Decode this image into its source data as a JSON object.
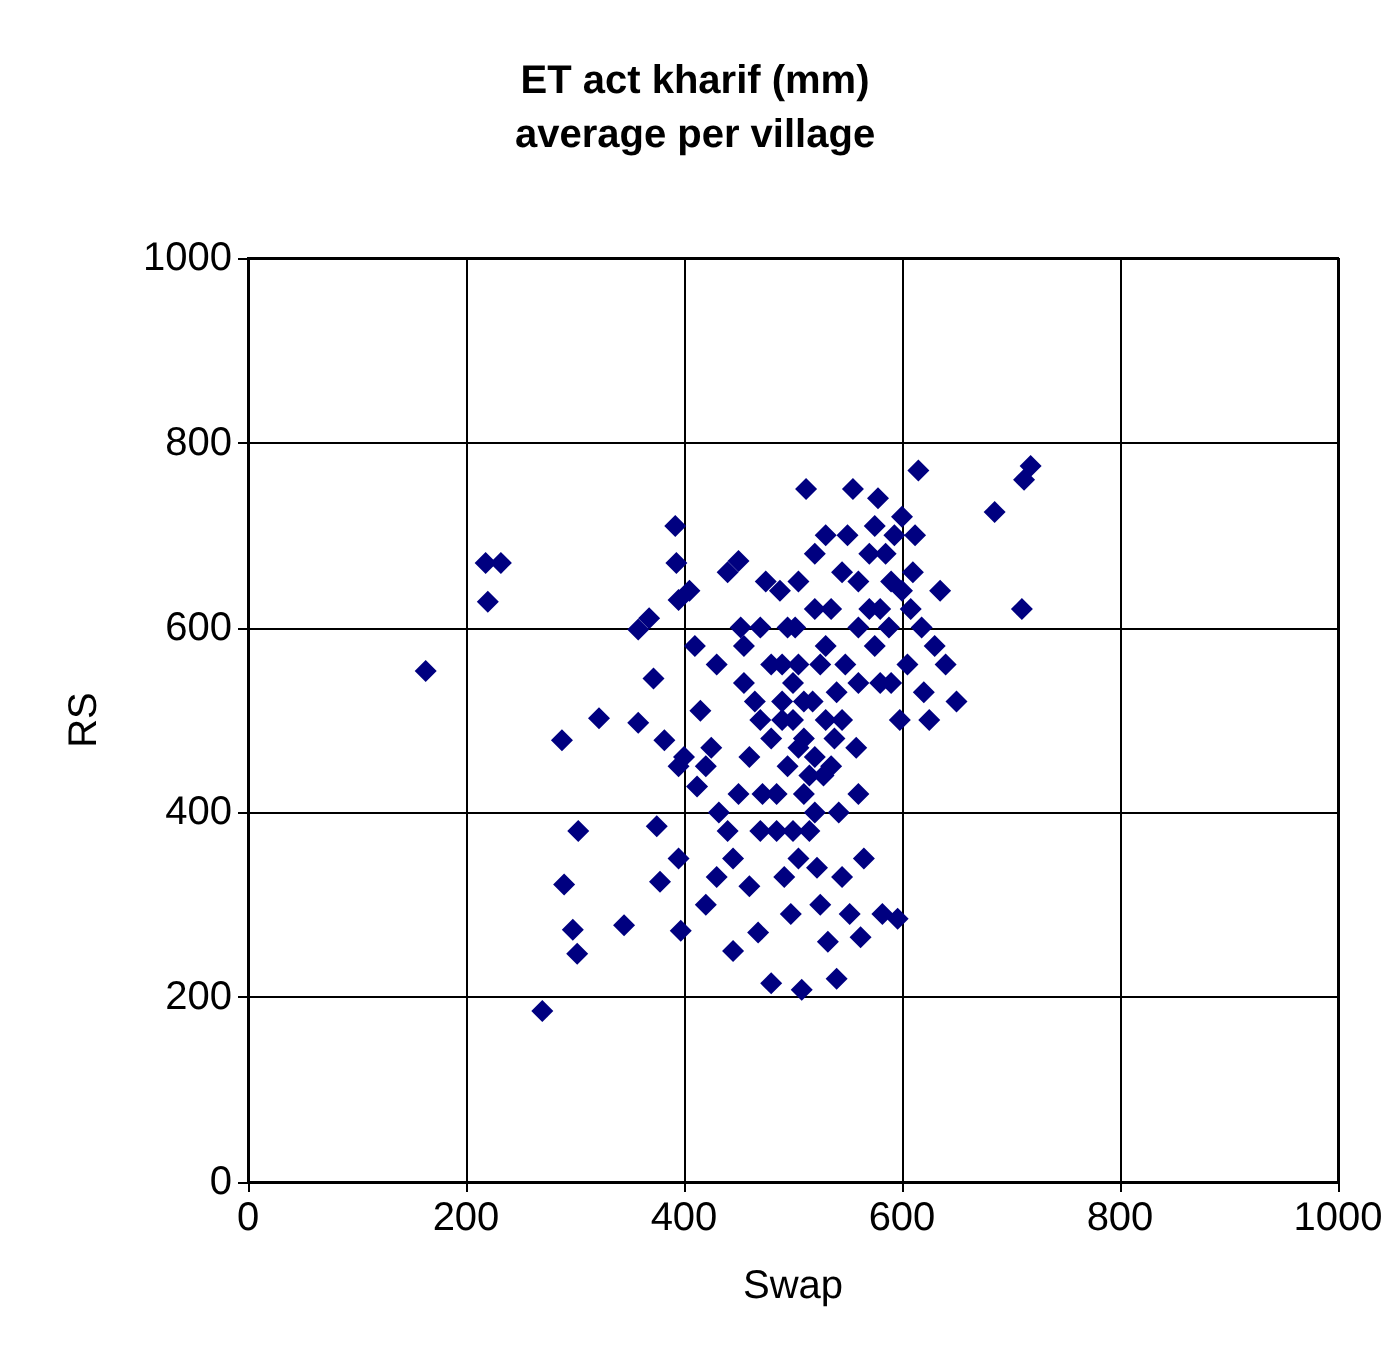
{
  "chart_data": {
    "type": "scatter",
    "title": "ET act kharif (mm)\naverage per village",
    "xlabel": "Swap",
    "ylabel": "RS",
    "xlim": [
      0,
      1000
    ],
    "xticks": [
      0,
      200,
      400,
      600,
      800,
      1000
    ],
    "ylim": [
      0,
      1000
    ],
    "yticks": [
      0,
      200,
      400,
      600,
      800,
      1000
    ],
    "grid": true,
    "marker": "diamond",
    "series": [
      {
        "color": "#000080",
        "x": [
          163,
          218,
          232,
          220,
          270,
          288,
          290,
          298,
          302,
          303,
          322,
          345,
          358,
          358,
          368,
          372,
          375,
          378,
          382,
          392,
          393,
          395,
          395,
          397,
          400,
          405,
          410,
          412,
          415,
          420,
          420,
          425,
          430,
          432,
          440,
          445,
          445,
          450,
          452,
          455,
          460,
          465,
          468,
          470,
          472,
          475,
          480,
          480,
          485,
          488,
          490,
          492,
          495,
          498,
          500,
          502,
          505,
          508,
          510,
          512,
          515,
          518,
          520,
          522,
          525,
          528,
          530,
          532,
          535,
          538,
          540,
          542,
          545,
          548,
          550,
          552,
          555,
          558,
          560,
          562,
          565,
          570,
          575,
          578,
          580,
          582,
          585,
          588,
          590,
          593,
          596,
          598,
          600,
          605,
          608,
          612,
          615,
          618,
          620,
          625,
          630,
          635,
          640,
          650,
          685,
          710,
          712,
          718,
          570,
          545,
          535,
          520,
          505,
          495,
          510,
          515,
          480,
          470,
          460,
          450,
          490,
          500,
          530,
          560,
          575,
          600,
          590,
          470,
          485,
          505,
          525,
          545,
          560,
          540,
          520,
          505,
          490,
          510,
          500,
          520,
          530,
          560,
          580,
          610,
          440,
          430,
          455,
          395
        ],
        "values": [
          553,
          670,
          670,
          628,
          185,
          478,
          322,
          273,
          247,
          380,
          502,
          278,
          598,
          497,
          610,
          545,
          385,
          325,
          478,
          710,
          670,
          630,
          350,
          272,
          460,
          640,
          580,
          428,
          510,
          450,
          300,
          470,
          330,
          400,
          660,
          250,
          350,
          672,
          600,
          540,
          460,
          520,
          270,
          600,
          420,
          650,
          215,
          560,
          380,
          640,
          500,
          330,
          450,
          290,
          540,
          600,
          470,
          208,
          420,
          750,
          380,
          520,
          680,
          340,
          560,
          440,
          700,
          260,
          620,
          480,
          220,
          400,
          660,
          560,
          700,
          290,
          750,
          470,
          600,
          265,
          350,
          620,
          710,
          740,
          540,
          290,
          680,
          600,
          650,
          700,
          285,
          500,
          720,
          560,
          620,
          700,
          770,
          600,
          530,
          500,
          580,
          640,
          560,
          520,
          725,
          620,
          760,
          775,
          680,
          500,
          450,
          400,
          560,
          600,
          480,
          440,
          480,
          380,
          320,
          420,
          520,
          380,
          580,
          540,
          580,
          640,
          540,
          500,
          420,
          350,
          300,
          330,
          420,
          530,
          620,
          650,
          560,
          520,
          500,
          460,
          500,
          650,
          620,
          660,
          380,
          560,
          580,
          450
        ]
      }
    ]
  }
}
